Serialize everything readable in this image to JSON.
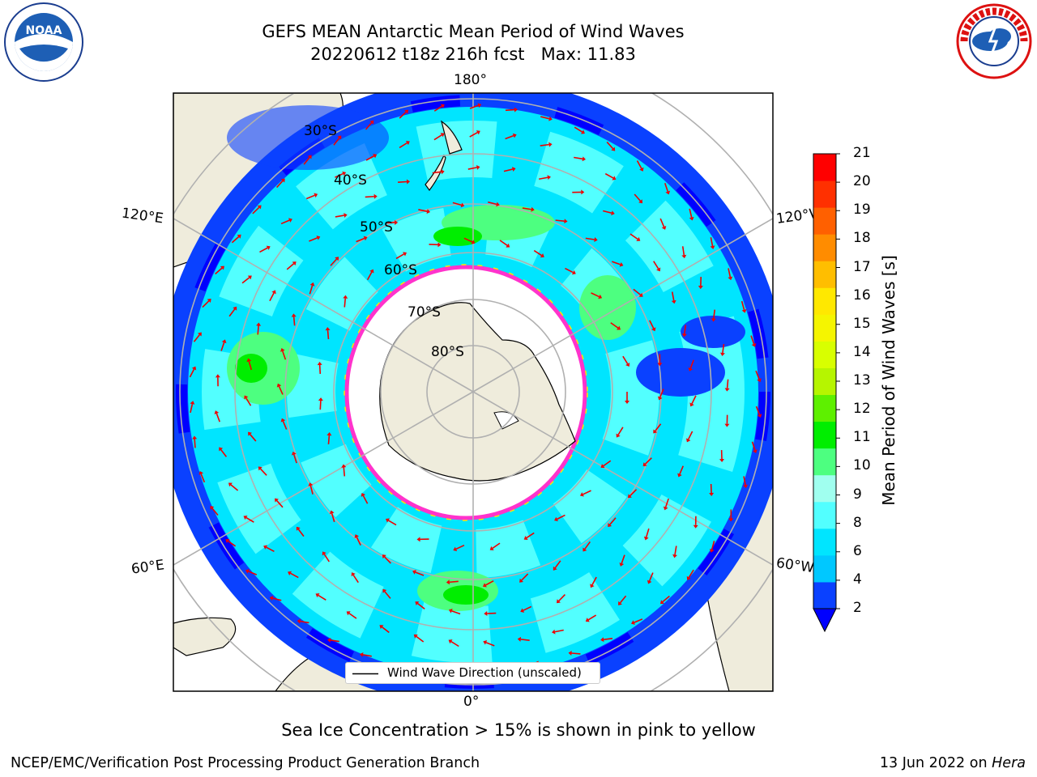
{
  "title": "GEFS MEAN Antarctic Mean Period of Wind Waves",
  "subtitle": "20220612 t18z 216h fcst   Max: 11.83",
  "note": "Sea Ice Concentration > 15% is shown in pink to yellow",
  "footer_left": "NCEP/EMC/Verification Post Processing Product Generation Branch",
  "footer_date": "13 Jun 2022 on",
  "footer_machine": "Hera",
  "legend_label": "Wind Wave Direction (unscaled)",
  "logos": {
    "left": "NOAA",
    "right": "NATIONAL WEATHER SERVICE"
  },
  "map": {
    "projection": "south polar stereographic",
    "lon_labels": {
      "top": "180°",
      "bottom": "0°",
      "upper_left": "120°E",
      "lower_left": "60°E",
      "upper_right": "120°W",
      "lower_right": "60°W"
    },
    "lat_labels": [
      "30°S",
      "40°S",
      "50°S",
      "60°S",
      "70°S",
      "80°S"
    ]
  },
  "colorbar": {
    "label": "Mean Period of Wind Waves [s]",
    "ticks": [
      "21",
      "20",
      "19",
      "18",
      "17",
      "16",
      "15",
      "14",
      "13",
      "12",
      "11",
      "10",
      "9",
      "8",
      "6",
      "4",
      "2"
    ],
    "colors": [
      "#0a41ff",
      "#00c8ff",
      "#00e5ff",
      "#52ffff",
      "#a0ffef",
      "#4dff80",
      "#00ee00",
      "#5ef000",
      "#b6f500",
      "#d8ff00",
      "#f5f500",
      "#ffe800",
      "#ffbe00",
      "#ff8c00",
      "#ff6000",
      "#ff3000",
      "#ff0000"
    ],
    "under_color": "#0000ff"
  }
}
